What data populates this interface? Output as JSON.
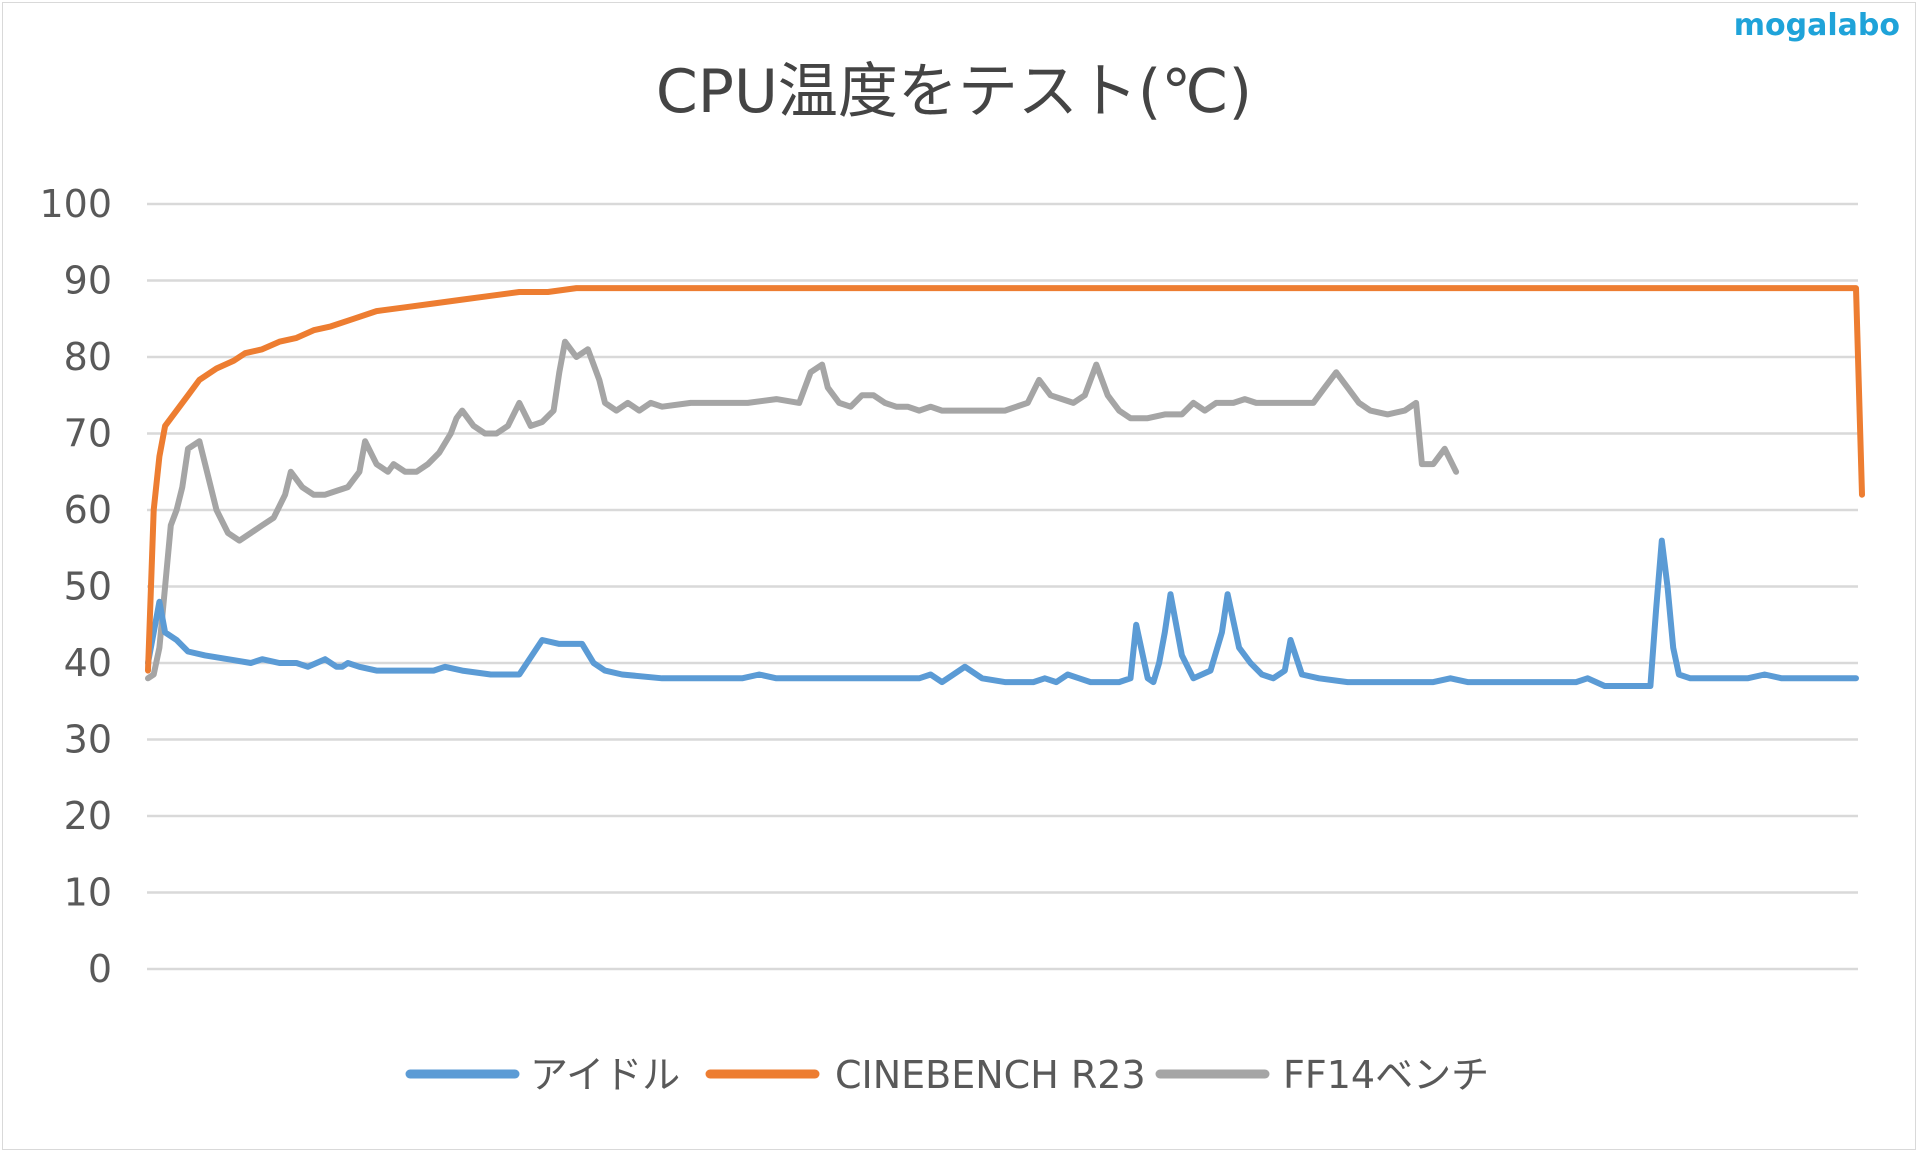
{
  "watermark": "mogalabo",
  "chart_data": {
    "type": "line",
    "title": "CPU温度をテスト(℃)",
    "xlabel": "",
    "ylabel": "",
    "ylim": [
      0,
      100
    ],
    "yticks": [
      "0",
      "10",
      "20",
      "30",
      "40",
      "50",
      "60",
      "70",
      "80",
      "90",
      "100"
    ],
    "grid": true,
    "legend_position": "bottom",
    "x_count": 300,
    "series": [
      {
        "name": "アイドル",
        "color": "#5b9bd5",
        "points": [
          [
            0,
            40
          ],
          [
            1,
            44
          ],
          [
            2,
            48
          ],
          [
            3,
            44
          ],
          [
            5,
            43
          ],
          [
            7,
            41.5
          ],
          [
            10,
            41
          ],
          [
            14,
            40.5
          ],
          [
            18,
            40
          ],
          [
            20,
            40.5
          ],
          [
            23,
            40
          ],
          [
            26,
            40
          ],
          [
            28,
            39.5
          ],
          [
            31,
            40.5
          ],
          [
            33,
            39.5
          ],
          [
            34,
            39.5
          ],
          [
            35,
            40
          ],
          [
            37,
            39.5
          ],
          [
            40,
            39
          ],
          [
            43,
            39
          ],
          [
            45,
            39
          ],
          [
            47,
            39
          ],
          [
            49,
            39
          ],
          [
            50,
            39
          ],
          [
            52,
            39.5
          ],
          [
            55,
            39
          ],
          [
            60,
            38.5
          ],
          [
            65,
            38.5
          ],
          [
            69,
            43
          ],
          [
            72,
            42.5
          ],
          [
            76,
            42.5
          ],
          [
            78,
            40
          ],
          [
            80,
            39
          ],
          [
            83,
            38.5
          ],
          [
            90,
            38
          ],
          [
            98,
            38
          ],
          [
            100,
            38
          ],
          [
            104,
            38
          ],
          [
            107,
            38.5
          ],
          [
            110,
            38
          ],
          [
            115,
            38
          ],
          [
            120,
            38
          ],
          [
            125,
            38
          ],
          [
            130,
            38
          ],
          [
            135,
            38
          ],
          [
            137,
            38.5
          ],
          [
            139,
            37.5
          ],
          [
            141,
            38.5
          ],
          [
            143,
            39.5
          ],
          [
            146,
            38
          ],
          [
            150,
            37.5
          ],
          [
            155,
            37.5
          ],
          [
            157,
            38
          ],
          [
            159,
            37.5
          ],
          [
            161,
            38.5
          ],
          [
            163,
            38
          ],
          [
            165,
            37.5
          ],
          [
            170,
            37.5
          ],
          [
            172,
            38
          ],
          [
            173,
            45
          ],
          [
            175,
            38
          ],
          [
            176,
            37.5
          ],
          [
            177,
            40
          ],
          [
            178,
            44
          ],
          [
            179,
            49
          ],
          [
            181,
            41
          ],
          [
            183,
            38
          ],
          [
            186,
            39
          ],
          [
            188,
            44
          ],
          [
            189,
            49
          ],
          [
            191,
            42
          ],
          [
            193,
            40
          ],
          [
            195,
            38.5
          ],
          [
            197,
            38
          ],
          [
            199,
            39
          ],
          [
            200,
            43
          ],
          [
            202,
            38.5
          ],
          [
            205,
            38
          ],
          [
            210,
            37.5
          ],
          [
            215,
            37.5
          ],
          [
            220,
            37.5
          ],
          [
            225,
            37.5
          ],
          [
            228,
            38
          ],
          [
            231,
            37.5
          ],
          [
            235,
            37.5
          ],
          [
            240,
            37.5
          ],
          [
            245,
            37.5
          ],
          [
            250,
            37.5
          ],
          [
            252,
            38
          ],
          [
            255,
            37
          ],
          [
            258,
            37
          ],
          [
            260,
            37
          ],
          [
            262,
            37
          ],
          [
            263,
            37
          ],
          [
            264,
            47
          ],
          [
            265,
            56
          ],
          [
            266,
            50
          ],
          [
            267,
            42
          ],
          [
            268,
            38.5
          ],
          [
            270,
            38
          ],
          [
            275,
            38
          ],
          [
            280,
            38
          ],
          [
            283,
            38.5
          ],
          [
            286,
            38
          ],
          [
            290,
            38
          ],
          [
            295,
            38
          ],
          [
            299,
            38
          ]
        ]
      },
      {
        "name": "CINEBENCH R23",
        "color": "#ed7d31",
        "points": [
          [
            0,
            39
          ],
          [
            1,
            60
          ],
          [
            2,
            67
          ],
          [
            3,
            71
          ],
          [
            5,
            73
          ],
          [
            7,
            75
          ],
          [
            9,
            77
          ],
          [
            12,
            78.5
          ],
          [
            15,
            79.5
          ],
          [
            17,
            80.5
          ],
          [
            20,
            81
          ],
          [
            23,
            82
          ],
          [
            26,
            82.5
          ],
          [
            29,
            83.5
          ],
          [
            32,
            84
          ],
          [
            36,
            85
          ],
          [
            40,
            86
          ],
          [
            45,
            86.5
          ],
          [
            50,
            87
          ],
          [
            55,
            87.5
          ],
          [
            60,
            88
          ],
          [
            65,
            88.5
          ],
          [
            70,
            88.5
          ],
          [
            75,
            89
          ],
          [
            80,
            89
          ],
          [
            85,
            89
          ],
          [
            90,
            89
          ],
          [
            95,
            89
          ],
          [
            100,
            89
          ],
          [
            110,
            89
          ],
          [
            120,
            89
          ],
          [
            130,
            89
          ],
          [
            140,
            89
          ],
          [
            150,
            89
          ],
          [
            160,
            89
          ],
          [
            170,
            89
          ],
          [
            180,
            89
          ],
          [
            190,
            89
          ],
          [
            200,
            89
          ],
          [
            220,
            89
          ],
          [
            240,
            89
          ],
          [
            260,
            89
          ],
          [
            280,
            89
          ],
          [
            299,
            89
          ]
        ]
      },
      {
        "name": "FF14ベンチ",
        "color": "#a5a5a5",
        "points": [
          [
            0,
            38
          ],
          [
            1,
            38.5
          ],
          [
            2,
            42
          ],
          [
            3,
            50
          ],
          [
            4,
            58
          ],
          [
            5,
            60
          ],
          [
            6,
            63
          ],
          [
            7,
            68
          ],
          [
            9,
            69
          ],
          [
            10,
            66
          ],
          [
            12,
            60
          ],
          [
            14,
            57
          ],
          [
            16,
            56
          ],
          [
            18,
            57
          ],
          [
            20,
            58
          ],
          [
            22,
            59
          ],
          [
            24,
            62
          ],
          [
            25,
            65
          ],
          [
            27,
            63
          ],
          [
            29,
            62
          ],
          [
            31,
            62
          ],
          [
            33,
            62.5
          ],
          [
            35,
            63
          ],
          [
            37,
            65
          ],
          [
            38,
            69
          ],
          [
            40,
            66
          ],
          [
            42,
            65
          ],
          [
            43,
            66
          ],
          [
            45,
            65
          ],
          [
            47,
            65
          ],
          [
            49,
            66
          ],
          [
            51,
            67.5
          ],
          [
            53,
            70
          ],
          [
            54,
            72
          ],
          [
            55,
            73
          ],
          [
            57,
            71
          ],
          [
            59,
            70
          ],
          [
            61,
            70
          ],
          [
            63,
            71
          ],
          [
            65,
            74
          ],
          [
            67,
            71
          ],
          [
            69,
            71.5
          ],
          [
            71,
            73
          ],
          [
            72,
            78
          ],
          [
            73,
            82
          ],
          [
            75,
            80
          ],
          [
            77,
            81
          ],
          [
            78,
            79
          ],
          [
            79,
            77
          ],
          [
            80,
            74
          ],
          [
            82,
            73
          ],
          [
            84,
            74
          ],
          [
            86,
            73
          ],
          [
            88,
            74
          ],
          [
            90,
            73.5
          ],
          [
            95,
            74
          ],
          [
            100,
            74
          ],
          [
            105,
            74
          ],
          [
            110,
            74.5
          ],
          [
            114,
            74
          ],
          [
            116,
            78
          ],
          [
            118,
            79
          ],
          [
            119,
            76
          ],
          [
            121,
            74
          ],
          [
            123,
            73.5
          ],
          [
            125,
            75
          ],
          [
            127,
            75
          ],
          [
            129,
            74
          ],
          [
            131,
            73.5
          ],
          [
            133,
            73.5
          ],
          [
            135,
            73
          ],
          [
            137,
            73.5
          ],
          [
            139,
            73
          ],
          [
            141,
            73
          ],
          [
            145,
            73
          ],
          [
            150,
            73
          ],
          [
            154,
            74
          ],
          [
            156,
            77
          ],
          [
            158,
            75
          ],
          [
            160,
            74.5
          ],
          [
            162,
            74
          ],
          [
            164,
            75
          ],
          [
            166,
            79
          ],
          [
            168,
            75
          ],
          [
            170,
            73
          ],
          [
            172,
            72
          ],
          [
            175,
            72
          ],
          [
            178,
            72.5
          ],
          [
            181,
            72.5
          ],
          [
            183,
            74
          ],
          [
            185,
            73
          ],
          [
            187,
            74
          ],
          [
            190,
            74
          ],
          [
            192,
            74.5
          ],
          [
            194,
            74
          ],
          [
            196,
            74
          ],
          [
            198,
            74
          ],
          [
            200,
            74
          ],
          [
            202,
            74
          ],
          [
            204,
            74
          ],
          [
            206,
            76
          ],
          [
            208,
            78
          ],
          [
            210,
            76
          ],
          [
            212,
            74
          ],
          [
            214,
            73
          ],
          [
            217,
            72.5
          ],
          [
            220,
            73
          ],
          [
            222,
            74
          ],
          [
            223,
            66
          ],
          [
            225,
            66
          ],
          [
            227,
            68
          ],
          [
            229,
            65
          ]
        ]
      }
    ]
  }
}
